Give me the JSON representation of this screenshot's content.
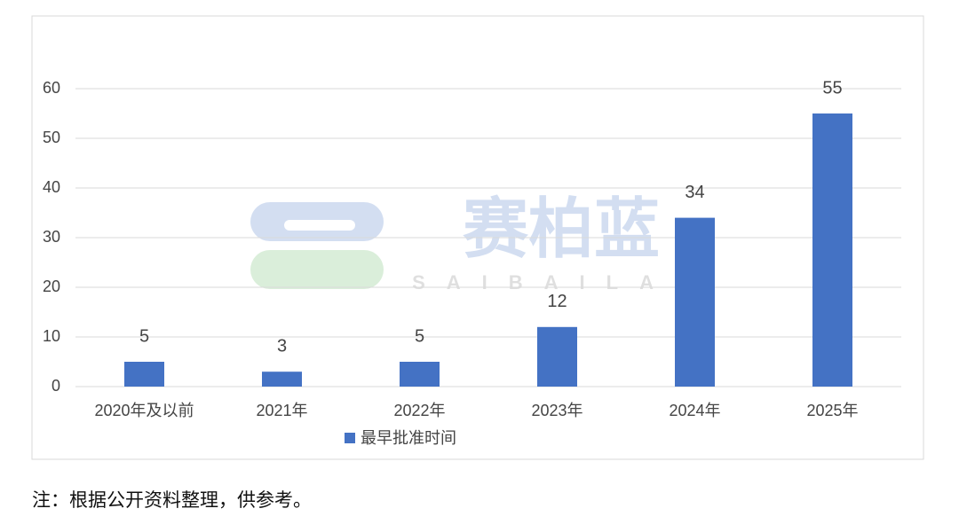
{
  "chart_data": {
    "type": "bar",
    "categories": [
      "2020年及以前",
      "2021年",
      "2022年",
      "2023年",
      "2024年",
      "2025年"
    ],
    "series": [
      {
        "name": "最早批准时间",
        "color": "#4472c4",
        "values": [
          5,
          3,
          5,
          12,
          34,
          55
        ]
      }
    ],
    "ylim": [
      0,
      60
    ],
    "yticks": [
      0,
      10,
      20,
      30,
      40,
      50,
      60
    ],
    "grid": true,
    "legend": "bottom",
    "watermark": {
      "text": "赛柏蓝",
      "subtext": "SAIBAILAN"
    }
  },
  "note": "注：根据公开资料整理，供参考。"
}
